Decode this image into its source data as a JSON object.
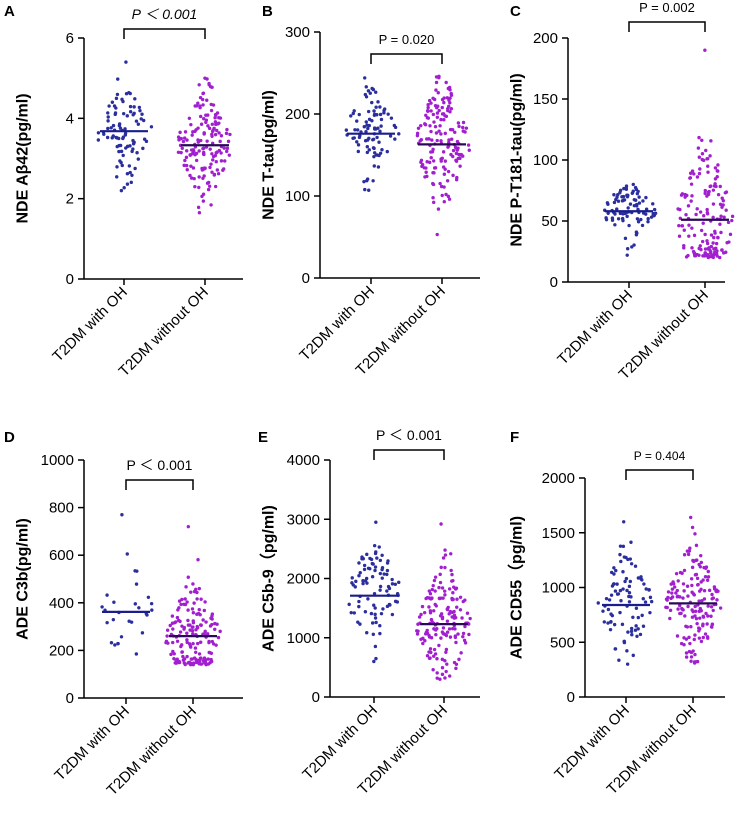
{
  "colors": {
    "with_oh": "#2b2f9e",
    "without_oh": "#a21fd0"
  },
  "chart_data": [
    {
      "panel": "A",
      "type": "scatter",
      "ylabel": "NDE Aβ42(pg/ml)",
      "ylim": [
        0,
        6
      ],
      "yticks": [
        "0",
        "2",
        "4",
        "6"
      ],
      "categories": [
        "T2DM with OH",
        "T2DM without OH"
      ],
      "p_label": "P ＜ 0.001",
      "series": [
        {
          "name": "T2DM with OH",
          "median": 3.68,
          "n": 90,
          "min": 2.2,
          "max": 5.4
        },
        {
          "name": "T2DM without OH",
          "median": 3.33,
          "n": 160,
          "min": 1.65,
          "max": 5.0
        }
      ]
    },
    {
      "panel": "B",
      "type": "scatter",
      "ylabel": "NDE T-tau(pg/ml)",
      "ylim": [
        0,
        300
      ],
      "yticks": [
        "0",
        "100",
        "200",
        "300"
      ],
      "categories": [
        "T2DM with OH",
        "T2DM without OH"
      ],
      "p_label": "P = 0.020",
      "series": [
        {
          "name": "T2DM with OH",
          "median": 176,
          "n": 90,
          "min": 107,
          "max": 244
        },
        {
          "name": "T2DM without OH",
          "median": 163,
          "n": 160,
          "min": 53,
          "max": 246
        }
      ]
    },
    {
      "panel": "C",
      "type": "scatter",
      "ylabel": "NDE P-T181-tau(pg/ml)",
      "ylim": [
        0,
        200
      ],
      "yticks": [
        "0",
        "50",
        "100",
        "150",
        "200"
      ],
      "categories": [
        "T2DM with OH",
        "T2DM without OH"
      ],
      "p_label": "P = 0.002",
      "series": [
        {
          "name": "T2DM with OH",
          "median": 58,
          "n": 90,
          "min": 22,
          "max": 80
        },
        {
          "name": "T2DM without OH",
          "median": 51,
          "n": 160,
          "min": 20,
          "max": 190
        }
      ]
    },
    {
      "panel": "D",
      "type": "scatter",
      "ylabel": "ADE C3b(pg/ml)",
      "ylim": [
        0,
        1000
      ],
      "yticks": [
        "0",
        "200",
        "400",
        "600",
        "800",
        "1000"
      ],
      "categories": [
        "T2DM with OH",
        "T2DM without OH"
      ],
      "p_label": "P ＜ 0.001",
      "series": [
        {
          "name": "T2DM with OH",
          "median": 362,
          "n": 28,
          "min": 185,
          "max": 770
        },
        {
          "name": "T2DM without OH",
          "median": 260,
          "n": 170,
          "min": 140,
          "max": 720
        }
      ]
    },
    {
      "panel": "E",
      "type": "scatter",
      "ylabel": "ADE C5b-9（pg/ml)",
      "ylim": [
        0,
        4000
      ],
      "yticks": [
        "0",
        "1000",
        "2000",
        "3000",
        "4000"
      ],
      "categories": [
        "T2DM with OH",
        "T2DM without OH"
      ],
      "p_label": "P ＜ 0.001",
      "series": [
        {
          "name": "T2DM with OH",
          "median": 1710,
          "n": 90,
          "min": 600,
          "max": 2950
        },
        {
          "name": "T2DM without OH",
          "median": 1230,
          "n": 160,
          "min": 300,
          "max": 2920
        }
      ]
    },
    {
      "panel": "F",
      "type": "scatter",
      "ylabel": "ADE CD55（pg/ml)",
      "ylim": [
        0,
        2000
      ],
      "yticks": [
        "0",
        "500",
        "1000",
        "1500",
        "2000"
      ],
      "categories": [
        "T2DM with OH",
        "T2DM without OH"
      ],
      "p_label": "P = 0.404",
      "series": [
        {
          "name": "T2DM with OH",
          "median": 840,
          "n": 90,
          "min": 300,
          "max": 1600
        },
        {
          "name": "T2DM without OH",
          "median": 855,
          "n": 160,
          "min": 310,
          "max": 1640
        }
      ]
    }
  ]
}
